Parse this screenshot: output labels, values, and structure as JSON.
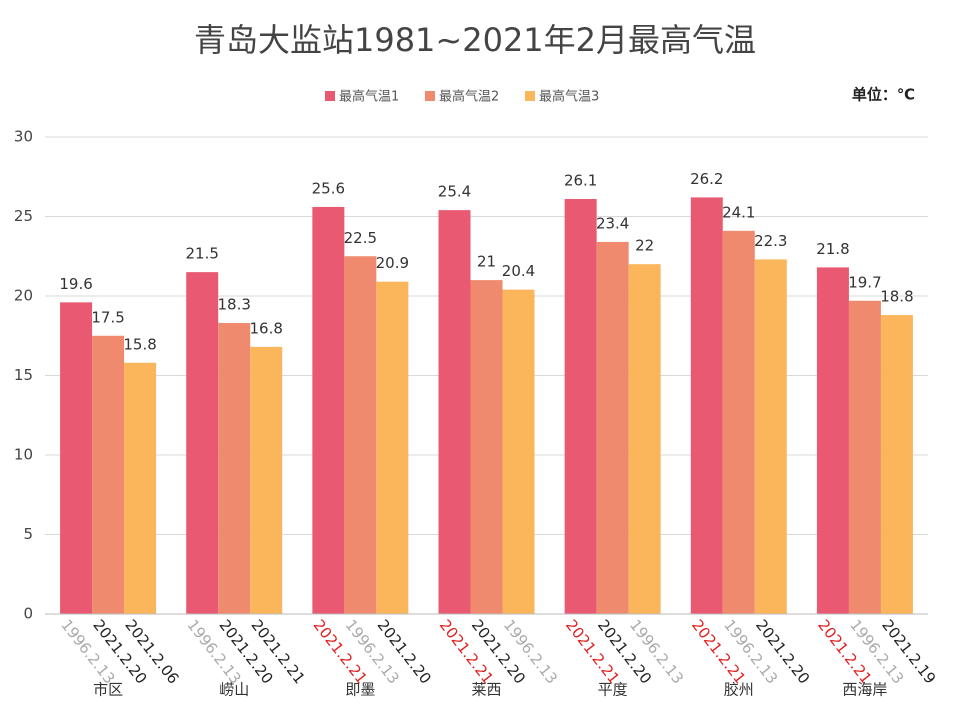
{
  "chart_data": {
    "type": "bar",
    "title": "青岛大监站1981~2021年2月最高气温",
    "unit_label": "单位：℃",
    "categories": [
      "市区",
      "崂山",
      "即墨",
      "莱西",
      "平度",
      "胶州",
      "西海岸"
    ],
    "series": [
      {
        "name": "最高气温1",
        "color": "#e95a72",
        "values": [
          19.6,
          21.5,
          25.6,
          25.4,
          26.1,
          26.2,
          21.8
        ],
        "date_labels": [
          "1996.2.13",
          "1996.2.13",
          "2021.2.21",
          "2021.2.21",
          "2021.2.21",
          "2021.2.21",
          "2021.2.21"
        ],
        "date_label_colors": [
          "#aaaaaa",
          "#aaaaaa",
          "#e02020",
          "#e02020",
          "#e02020",
          "#e02020",
          "#e02020"
        ]
      },
      {
        "name": "最高气温2",
        "color": "#ef8a6e",
        "values": [
          17.5,
          18.3,
          22.5,
          21,
          23.4,
          24.1,
          19.7
        ],
        "date_labels": [
          "2021.2.20",
          "2021.2.20",
          "1996.2.13",
          "2021.2.20",
          "2021.2.20",
          "1996.2.13",
          "1996.2.13"
        ],
        "date_label_colors": [
          "#222222",
          "#222222",
          "#aaaaaa",
          "#222222",
          "#222222",
          "#aaaaaa",
          "#aaaaaa"
        ]
      },
      {
        "name": "最高气温3",
        "color": "#fbb55a",
        "values": [
          15.8,
          16.8,
          20.9,
          20.4,
          22,
          22.3,
          18.8
        ],
        "date_labels": [
          "2021.2.06",
          "2021.2.21",
          "2021.2.20",
          "1996.2.13",
          "1996.2.13",
          "2021.2.20",
          "2021.2.19"
        ],
        "date_label_colors": [
          "#222222",
          "#222222",
          "#222222",
          "#aaaaaa",
          "#aaaaaa",
          "#222222",
          "#222222"
        ]
      }
    ],
    "ylim": [
      0,
      30
    ],
    "yticks": [
      0,
      5,
      10,
      15,
      20,
      25,
      30
    ],
    "grid": true,
    "legend": "top"
  }
}
